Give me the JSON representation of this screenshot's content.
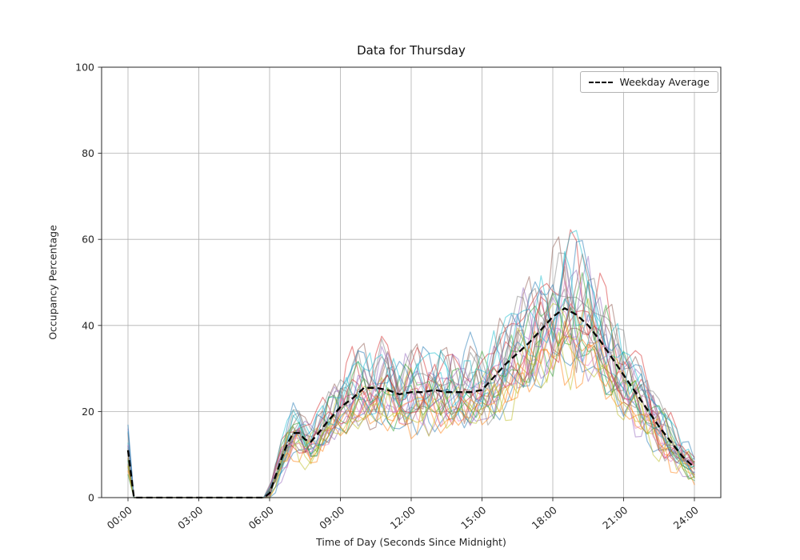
{
  "chart_data": {
    "type": "line",
    "title": "Data for Thursday",
    "xlabel": "Time of Day (Seconds Since Midnight)",
    "ylabel": "Occupancy Percentage",
    "xlim_hours": [
      0,
      24
    ],
    "ylim": [
      0,
      100
    ],
    "grid": true,
    "legend_position": "upper right",
    "x_tick_hours": [
      0,
      3,
      6,
      9,
      12,
      15,
      18,
      21,
      24
    ],
    "x_tick_labels": [
      "00:00",
      "03:00",
      "06:00",
      "09:00",
      "12:00",
      "15:00",
      "18:00",
      "21:00",
      "24:00"
    ],
    "y_ticks": [
      0,
      20,
      40,
      60,
      80,
      100
    ],
    "y_tick_labels": [
      "0",
      "20",
      "40",
      "60",
      "80",
      "100"
    ],
    "average_series": {
      "name": "Weekday Average",
      "style": "dashed",
      "color": "#000000",
      "x_hours": [
        0,
        0.25,
        5.75,
        6.0,
        6.25,
        6.5,
        6.75,
        7.0,
        7.25,
        7.5,
        7.75,
        8.0,
        8.5,
        9.0,
        9.5,
        10.0,
        10.5,
        11.0,
        11.5,
        12.0,
        12.5,
        13.0,
        13.5,
        14.0,
        14.5,
        15.0,
        15.5,
        16.0,
        16.5,
        17.0,
        17.5,
        18.0,
        18.5,
        19.0,
        19.5,
        20.0,
        20.5,
        21.0,
        21.5,
        22.0,
        22.5,
        23.0,
        23.5,
        24.0
      ],
      "values": [
        11,
        0,
        0,
        1,
        5,
        9,
        12.5,
        15,
        15,
        13.5,
        13,
        14.5,
        18,
        21,
        23,
        25.5,
        25.5,
        25,
        24,
        24.5,
        24.5,
        25,
        24.5,
        24.5,
        24.5,
        25,
        28,
        31,
        33.5,
        36,
        39,
        42,
        44,
        42.5,
        40,
        36.5,
        32.5,
        28.5,
        24.5,
        20.5,
        16.5,
        13,
        9.5,
        7
      ]
    },
    "individual_lines": {
      "count": 30,
      "alpha": 0.5,
      "stroke_width": 1.2,
      "colors": [
        "#1f77b4",
        "#ff7f0e",
        "#2ca02c",
        "#d62728",
        "#9467bd",
        "#8c564b",
        "#e377c2",
        "#7f7f7f",
        "#bcbd22",
        "#17becf"
      ],
      "noise_rel": 0.28,
      "noise_abs": 3.0,
      "scale_min": 0.78,
      "scale_span": 0.5,
      "seed": 7
    },
    "grid_color": "#b0b0b0",
    "spine_color": "#262626"
  }
}
